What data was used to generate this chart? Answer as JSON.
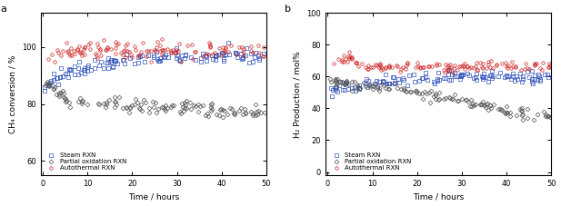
{
  "panel_a": {
    "title": "a",
    "xlabel": "Time / hours",
    "ylabel": "CH₄ conversion / %",
    "ylim": [
      55,
      112
    ],
    "yticks": [
      60,
      80,
      100
    ],
    "xlim": [
      -0.5,
      50
    ],
    "xticks": [
      0,
      10,
      20,
      30,
      40,
      50
    ],
    "series": {
      "steam": {
        "label": "Steam RXN",
        "color": "#3355bb",
        "marker": "s"
      },
      "partial": {
        "label": "Partial oxidation RXN",
        "color": "#555555",
        "marker": "D"
      },
      "autothermal": {
        "label": "Autothermal RXN",
        "color": "#cc2222",
        "marker": "o"
      }
    }
  },
  "panel_b": {
    "title": "b",
    "xlabel": "Time / hours",
    "ylabel": "H₂ Production / mol%",
    "ylim": [
      -2,
      100
    ],
    "yticks": [
      0,
      20,
      40,
      60,
      80,
      100
    ],
    "xlim": [
      -0.5,
      50
    ],
    "xticks": [
      0,
      10,
      20,
      30,
      40,
      50
    ],
    "series": {
      "steam": {
        "label": "Steam RXN",
        "color": "#3355bb",
        "marker": "s"
      },
      "partial": {
        "label": "Partial oxidation RXN",
        "color": "#555555",
        "marker": "D"
      },
      "autothermal": {
        "label": "Autothermal RXN",
        "color": "#cc2222",
        "marker": "o"
      }
    }
  },
  "background_color": "#ffffff",
  "marker_size": 2.5,
  "legend_fontsize": 5.0,
  "axis_label_fontsize": 6.5,
  "tick_fontsize": 6.0,
  "panel_label_fontsize": 8
}
